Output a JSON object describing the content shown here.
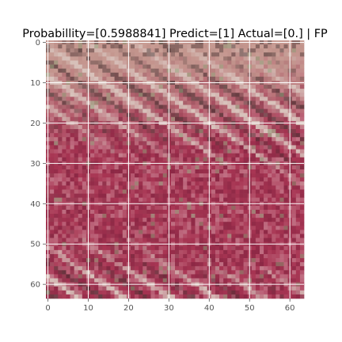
{
  "title": "Probabillity=[0.5988841] Predict=[1] Actual=[0.] | FP",
  "image": {
    "grid_size": 64,
    "subject": "pixelated patch of reddish-pink striped texture with pale diagonal streaks and a tan upper region",
    "palette": {
      "crimson": "#a83553",
      "deep_red": "#8c2845",
      "rose": "#c06e82",
      "pale_stripe": "#d8c2bb",
      "dark_stripe": "#453030",
      "tan": "#c9a698",
      "olive_green": "#8c9a74"
    }
  },
  "axes": {
    "x_ticks": [
      "0",
      "10",
      "20",
      "30",
      "40",
      "50",
      "60"
    ],
    "y_ticks": [
      "0",
      "10",
      "20",
      "30",
      "40",
      "50",
      "60"
    ],
    "grid": true,
    "grid_color": "#ffffff",
    "tick_color": "#555555"
  }
}
